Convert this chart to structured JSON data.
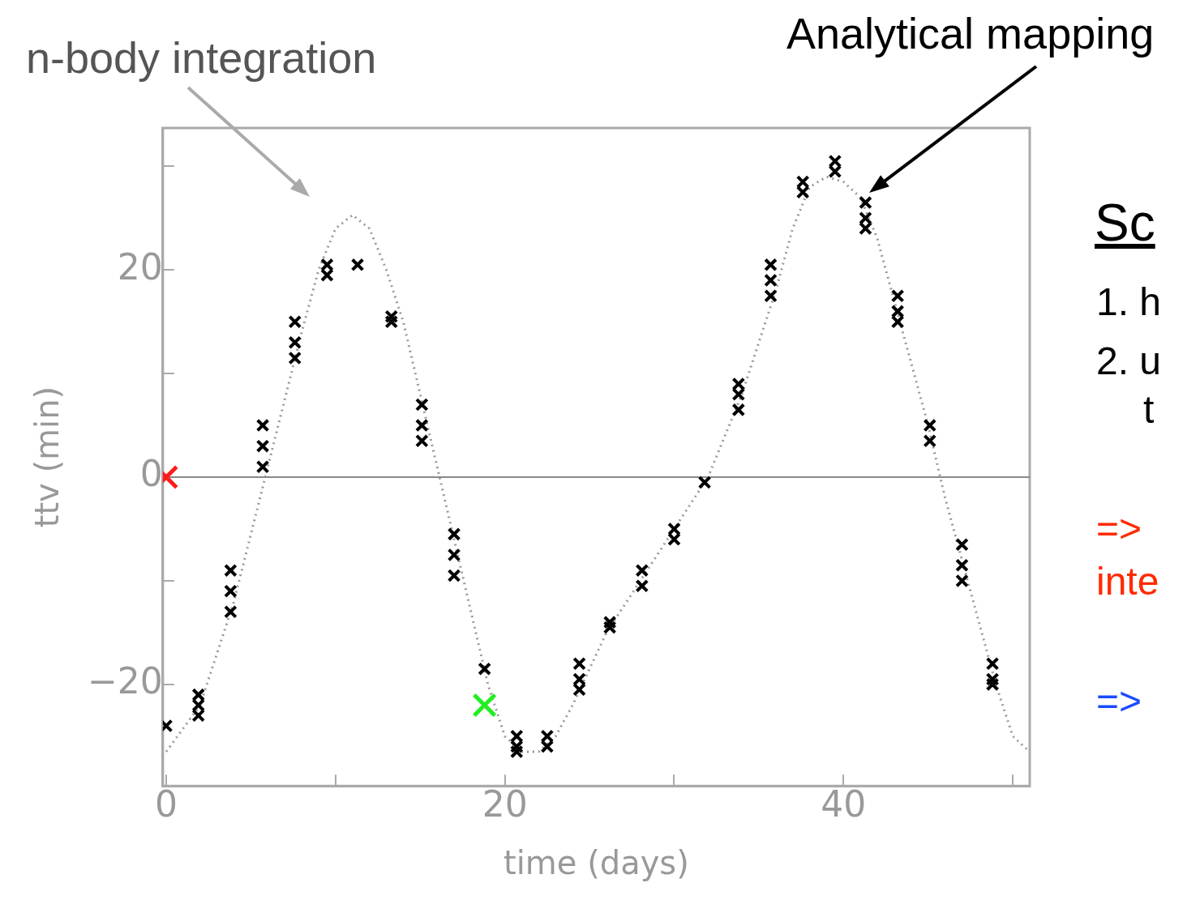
{
  "chart_data": {
    "type": "scatter",
    "xlabel": "time (days)",
    "ylabel": "ttv (min)",
    "xlim": [
      -0.2,
      51
    ],
    "ylim": [
      -29.8,
      33.7
    ],
    "xticks": [
      0,
      {
        "value": 10,
        "label": null
      },
      20,
      {
        "value": 30,
        "label": null
      },
      40,
      {
        "value": 50,
        "label": null
      }
    ],
    "yticks": [
      {
        "value": -20,
        "label": "−20"
      },
      {
        "value": -10,
        "label": null
      },
      0,
      {
        "value": 10,
        "label": null
      },
      20,
      {
        "value": 30,
        "label": null
      }
    ],
    "grid": false,
    "legend": false,
    "ref_lines": [
      {
        "axis": "y",
        "value": 0,
        "color": "#888888"
      }
    ],
    "annotations": [
      "n-body integration",
      "Analytical mapping",
      "Sc",
      "1. h",
      "2. u",
      "t",
      "=>",
      "inte",
      "=>"
    ],
    "series": [
      {
        "type": "line",
        "color": "#999999",
        "line_style": "dotted",
        "marker": "none",
        "x": [
          0,
          2,
          4,
          6,
          8,
          9,
          10,
          11,
          12,
          13,
          14,
          15,
          16,
          17,
          18,
          19,
          20,
          21,
          22,
          23,
          24,
          26,
          28,
          30,
          32,
          34,
          36,
          37,
          38,
          39,
          40,
          41,
          42,
          43,
          44,
          45,
          46,
          47,
          48,
          49,
          50,
          51
        ],
        "values": [
          -26.5,
          -22,
          -12,
          1,
          14,
          20,
          24,
          25.3,
          24,
          20,
          15,
          8,
          1,
          -6,
          -13,
          -20,
          -25,
          -26.5,
          -26.5,
          -25,
          -22,
          -15,
          -10,
          -5,
          0,
          8,
          18,
          24,
          28,
          29,
          28.5,
          27,
          23,
          17,
          11,
          5,
          -2,
          -8,
          -14,
          -20,
          -25,
          -26.5
        ]
      },
      {
        "color": "#000000",
        "marker": "cross",
        "x": [
          0,
          1.9,
          1.9,
          1.9,
          3.8,
          3.8,
          3.8,
          5.7,
          5.7,
          5.7,
          7.6,
          7.6,
          7.6,
          9.5,
          9.5,
          11.3,
          13.3,
          13.3,
          15.1,
          15.1,
          15.1,
          17,
          17,
          17,
          18.8,
          20.7,
          20.7,
          20.7,
          22.5,
          22.5,
          24.4,
          24.4,
          24.4,
          26.2,
          26.2,
          28.1,
          28.1,
          30,
          30,
          31.8,
          33.8,
          33.8,
          33.8,
          35.7,
          35.7,
          35.7,
          37.6,
          37.6,
          39.5,
          39.5,
          41.3,
          41.3,
          41.3,
          43.2,
          43.2,
          43.2,
          45.1,
          45.1,
          47,
          47,
          47,
          48.8,
          48.8,
          48.8
        ],
        "values": [
          -24,
          -21,
          -22,
          -23,
          -9,
          -11,
          -13,
          5,
          3,
          1,
          15,
          13,
          11.5,
          20.5,
          19.5,
          20.5,
          15.5,
          15,
          7,
          5,
          3.5,
          -5.5,
          -7.5,
          -9.5,
          -18.5,
          -25,
          -26,
          -26.5,
          -25,
          -26,
          -18,
          -19.5,
          -20.5,
          -14,
          -14.5,
          -9,
          -10.5,
          -5,
          -6,
          -0.5,
          9,
          8,
          6.5,
          20.5,
          19,
          17.5,
          28.5,
          27.5,
          30.5,
          29.5,
          26.5,
          25,
          24,
          17.5,
          16,
          15,
          5,
          3.5,
          -6.5,
          -8.5,
          -10,
          -18,
          -19.5,
          -20
        ]
      },
      {
        "color": "#ff1a1a",
        "marker": "cross",
        "x": [
          0
        ],
        "values": [
          0
        ]
      },
      {
        "color": "#22ee22",
        "marker": "cross",
        "x": [
          18.8
        ],
        "values": [
          -22
        ]
      }
    ]
  }
}
